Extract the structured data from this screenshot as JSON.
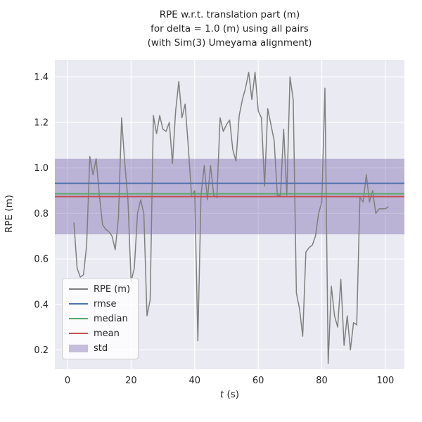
{
  "figure": {
    "background": "#ffffff"
  },
  "colors": {
    "plot_bg": "#eaeaf2",
    "grid": "#ffffff",
    "text": "#262626"
  },
  "chart_data": {
    "type": "line",
    "title": "RPE w.r.t. translation part (m)\nfor delta = 1.0 (m) using all pairs\n(with Sim(3) Umeyama alignment)",
    "title_lines": [
      "RPE w.r.t. translation part (m)",
      "for delta = 1.0 (m) using all pairs",
      "(with Sim(3) Umeyama alignment)"
    ],
    "xlabel_var": "t",
    "xlabel_unit": " (s)",
    "ylabel": "RPE (m)",
    "xlim": [
      -4,
      106
    ],
    "ylim": [
      0.115,
      1.475
    ],
    "xticks": [
      0,
      20,
      40,
      60,
      80,
      100
    ],
    "yticks": [
      0.2,
      0.4,
      0.6,
      0.8,
      1.0,
      1.2,
      1.4
    ],
    "grid": true,
    "legend_position": "lower-left",
    "series": [
      {
        "name": "RPE (m)",
        "kind": "line",
        "color": "#7f7f7f",
        "x": [
          2,
          3,
          4,
          5,
          6,
          7,
          8,
          9,
          10,
          11,
          12,
          13,
          14,
          15,
          16,
          17,
          18,
          19,
          20,
          21,
          22,
          23,
          24,
          25,
          26,
          27,
          28,
          29,
          30,
          31,
          32,
          33,
          34,
          35,
          36,
          37,
          38,
          39,
          40,
          41,
          42,
          43,
          44,
          45,
          46,
          47,
          48,
          49,
          50,
          51,
          52,
          53,
          54,
          55,
          56,
          57,
          58,
          59,
          60,
          61,
          62,
          63,
          64,
          65,
          66,
          67,
          68,
          69,
          70,
          71,
          72,
          73,
          74,
          75,
          76,
          77,
          78,
          79,
          80,
          81,
          82,
          83,
          84,
          85,
          86,
          87,
          88,
          89,
          90,
          91,
          92,
          93,
          94,
          95,
          96,
          97,
          98,
          99,
          100,
          101
        ],
        "y": [
          0.76,
          0.56,
          0.52,
          0.53,
          0.66,
          1.05,
          0.97,
          1.04,
          0.88,
          0.75,
          0.73,
          0.72,
          0.7,
          0.64,
          0.78,
          1.22,
          1.02,
          0.86,
          0.5,
          0.56,
          0.8,
          0.86,
          0.8,
          0.35,
          0.42,
          1.23,
          1.15,
          1.23,
          1.17,
          1.16,
          1.2,
          1.02,
          1.25,
          1.38,
          1.22,
          1.28,
          1.09,
          0.88,
          0.9,
          0.24,
          0.88,
          1.01,
          0.86,
          1.01,
          0.88,
          0.87,
          1.22,
          1.16,
          1.19,
          1.21,
          1.08,
          1.03,
          1.23,
          1.3,
          1.35,
          1.42,
          1.3,
          1.42,
          1.25,
          1.22,
          0.92,
          1.26,
          1.19,
          1.12,
          0.88,
          0.88,
          1.17,
          0.88,
          1.4,
          1.3,
          0.45,
          0.38,
          0.26,
          0.63,
          0.65,
          0.66,
          0.7,
          0.8,
          0.85,
          1.35,
          0.14,
          0.48,
          0.35,
          0.3,
          0.51,
          0.22,
          0.35,
          0.2,
          0.32,
          0.31,
          0.87,
          0.85,
          0.97,
          0.85,
          0.9,
          0.8,
          0.82,
          0.82,
          0.82,
          0.83
        ]
      },
      {
        "name": "rmse",
        "kind": "hline",
        "color": "#4c72b0",
        "value": 0.932
      },
      {
        "name": "median",
        "kind": "hline",
        "color": "#55a868",
        "value": 0.886
      },
      {
        "name": "mean",
        "kind": "hline",
        "color": "#c44e52",
        "value": 0.874
      },
      {
        "name": "std",
        "kind": "hband",
        "color": "#8172b2",
        "alpha": 0.45,
        "from": 0.708,
        "to": 1.04
      }
    ]
  }
}
